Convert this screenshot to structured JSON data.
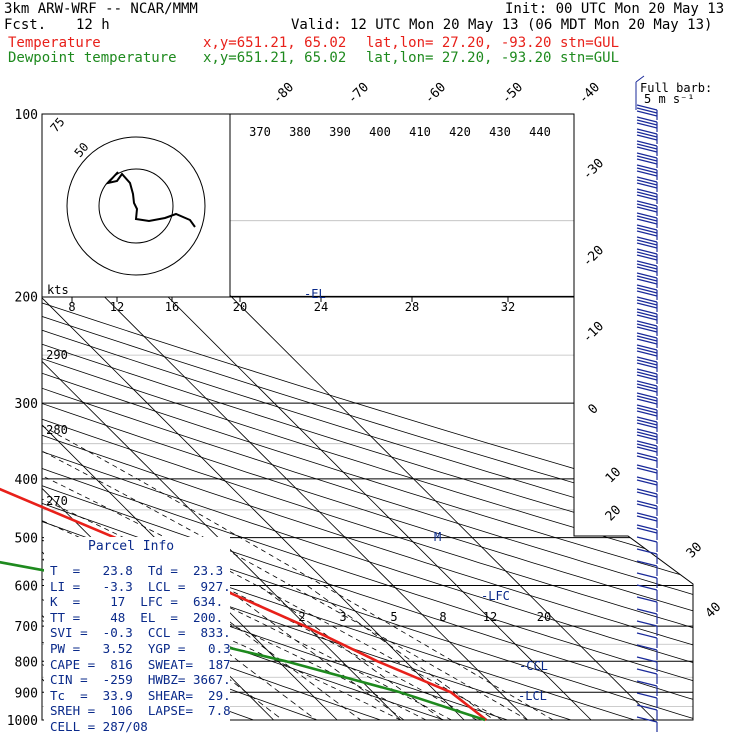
{
  "header": {
    "model": "3km ARW-WRF -- NCAR/MMM",
    "fcst_label": "Fcst.",
    "fcst_value": "12 h",
    "init": "Init: 00 UTC Mon 20 May 13",
    "valid": "Valid: 12 UTC Mon 20 May 13 (06 MDT Mon 20 May 13)",
    "temp_legend": "Temperature",
    "dew_legend": "Dewpoint temperature",
    "xy": "x,y=651.21, 65.02",
    "latlon": "lat,lon= 27.20, -93.20",
    "stn": "stn=GUL"
  },
  "colors": {
    "temperature": "#e8201a",
    "dewpoint": "#1e8a1e",
    "grid": "#000000",
    "parcel_text": "#0a2a8a",
    "wind": "#1a2a9a"
  },
  "chart_data": {
    "type": "line",
    "title": "",
    "skewt": true,
    "pressure_levels": [
      "100",
      "200",
      "300",
      "400",
      "500",
      "600",
      "700",
      "800",
      "900",
      "1000"
    ],
    "isotherm_labels": [
      "-80",
      "-70",
      "-60",
      "-50",
      "-40",
      "-30",
      "-20",
      "-10",
      "0",
      "10",
      "20",
      "30",
      "40"
    ],
    "theta_labels": [
      "370",
      "380",
      "390",
      "400",
      "410",
      "420",
      "430",
      "440"
    ],
    "theta_side_labels": [
      "290",
      "280",
      "270"
    ],
    "mixing_ratio_labels": [
      "2",
      "3",
      "5",
      "8",
      "12",
      "20"
    ],
    "hodo_speed_labels": [
      "8",
      "12",
      "16",
      "20",
      "24",
      "28",
      "32"
    ],
    "hodo_kts": "kts",
    "hodo_ring_labels": [
      "75",
      "50"
    ],
    "barb_legend": [
      "Full barb:",
      "5 m s⁻¹"
    ],
    "annotations": [
      "-EL",
      "-LFC",
      "-CCL",
      "-LCL"
    ],
    "series": [
      {
        "name": "Temperature",
        "points": [
          {
            "p": 100,
            "t": -73.4
          },
          {
            "p": 150,
            "t": -71.5
          },
          {
            "p": 200,
            "t": -60.8
          },
          {
            "p": 250,
            "t": -48.8
          },
          {
            "p": 300,
            "t": -37.7
          },
          {
            "p": 400,
            "t": -19.0
          },
          {
            "p": 500,
            "t": -6.3
          },
          {
            "p": 600,
            "t": 1.7
          },
          {
            "p": 700,
            "t": 9.7
          },
          {
            "p": 800,
            "t": 15.6
          },
          {
            "p": 900,
            "t": 22.3
          },
          {
            "p": 1000,
            "t": 23.5
          }
        ]
      },
      {
        "name": "Dewpoint temperature",
        "points": [
          {
            "p": 100,
            "t": -83.7
          },
          {
            "p": 150,
            "t": -82.0
          },
          {
            "p": 200,
            "t": -77.8
          },
          {
            "p": 250,
            "t": -78.5
          },
          {
            "p": 300,
            "t": -80.0
          },
          {
            "p": 350,
            "t": -68.7
          },
          {
            "p": 400,
            "t": -59.0
          },
          {
            "p": 450,
            "t": -50.3
          },
          {
            "p": 500,
            "t": -45.4
          },
          {
            "p": 600,
            "t": -12.0
          },
          {
            "p": 700,
            "t": -16.7
          },
          {
            "p": 800,
            "t": 1.2
          },
          {
            "p": 900,
            "t": 14.3
          },
          {
            "p": 1000,
            "t": 23.3
          }
        ]
      }
    ]
  },
  "parcel": {
    "title": "Parcel Info",
    "rows": [
      "T  =   23.8  Td =  23.3",
      "LI =   -3.3  LCL =  927.",
      "K  =    17  LFC =  634.",
      "TT =    48  EL  =  200.",
      "SVI =  -0.3  CCL =  833.",
      "PW =   3.52  YGP =   0.3",
      "CAPE =  816  SWEAT=  187",
      "CIN =  -259  HWBZ= 3667.",
      "Tc  =  33.9  SHEAR=  29.",
      "SREH =  106  LAPSE=  7.8",
      "CELL = 287/08"
    ]
  }
}
